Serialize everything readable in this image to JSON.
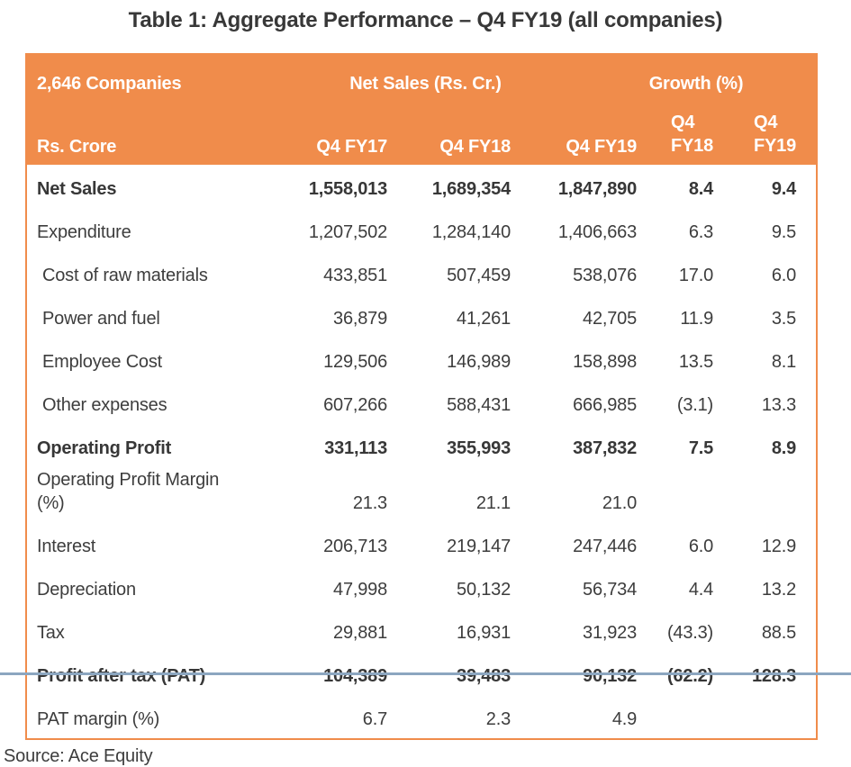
{
  "page": {
    "title": "Table 1: Aggregate Performance – Q4 FY19 (all companies)",
    "source": "Source: Ace Equity"
  },
  "colors": {
    "header_bg": "#F08C4B",
    "table_border": "#F08C4B",
    "header_text": "#FFFFFF",
    "body_text": "#3D3D3D",
    "bottom_rule": "#8CA6C0"
  },
  "chart_data": {
    "type": "table",
    "title": "Table 1: Aggregate Performance – Q4 FY19 (all companies)",
    "source": "Source: Ace Equity",
    "header": {
      "group_row": {
        "companies": "2,646 Companies",
        "net_sales": "Net Sales (Rs. Cr.)",
        "growth": "Growth (%)"
      },
      "columns_row": {
        "label": "Rs. Crore",
        "c1": "Q4 FY17",
        "c2": "Q4 FY18",
        "c3": "Q4 FY19",
        "g1_line1": "Q4",
        "g1_line2": "FY18",
        "g2_line1": "Q4",
        "g2_line2": "FY19"
      }
    },
    "rows": [
      {
        "label": "Net Sales",
        "bold": true,
        "indent": false,
        "q4fy17": "1,558,013",
        "q4fy18": "1,689,354",
        "q4fy19": "1,847,890",
        "growth_q4fy18": "8.4",
        "growth_q4fy19": "9.4"
      },
      {
        "label": "Expenditure",
        "bold": false,
        "indent": false,
        "q4fy17": "1,207,502",
        "q4fy18": "1,284,140",
        "q4fy19": "1,406,663",
        "growth_q4fy18": "6.3",
        "growth_q4fy19": "9.5"
      },
      {
        "label": "Cost of raw materials",
        "bold": false,
        "indent": true,
        "q4fy17": "433,851",
        "q4fy18": "507,459",
        "q4fy19": "538,076",
        "growth_q4fy18": "17.0",
        "growth_q4fy19": "6.0"
      },
      {
        "label": "Power and fuel",
        "bold": false,
        "indent": true,
        "q4fy17": "36,879",
        "q4fy18": "41,261",
        "q4fy19": "42,705",
        "growth_q4fy18": "11.9",
        "growth_q4fy19": "3.5"
      },
      {
        "label": "Employee Cost",
        "bold": false,
        "indent": true,
        "q4fy17": "129,506",
        "q4fy18": "146,989",
        "q4fy19": "158,898",
        "growth_q4fy18": "13.5",
        "growth_q4fy19": "8.1"
      },
      {
        "label": "Other expenses",
        "bold": false,
        "indent": true,
        "q4fy17": "607,266",
        "q4fy18": "588,431",
        "q4fy19": "666,985",
        "growth_q4fy18": "(3.1)",
        "growth_q4fy19": "13.3"
      },
      {
        "label": "Operating Profit",
        "bold": true,
        "indent": false,
        "q4fy17": "331,113",
        "q4fy18": "355,993",
        "q4fy19": "387,832",
        "growth_q4fy18": "7.5",
        "growth_q4fy19": "8.9"
      },
      {
        "label": "Operating Profit Margin (%)",
        "bold": false,
        "indent": false,
        "q4fy17": "21.3",
        "q4fy18": "21.1",
        "q4fy19": "21.0",
        "growth_q4fy18": "",
        "growth_q4fy19": ""
      },
      {
        "label": "Interest",
        "bold": false,
        "indent": false,
        "q4fy17": "206,713",
        "q4fy18": "219,147",
        "q4fy19": "247,446",
        "growth_q4fy18": "6.0",
        "growth_q4fy19": "12.9"
      },
      {
        "label": "Depreciation",
        "bold": false,
        "indent": false,
        "q4fy17": "47,998",
        "q4fy18": "50,132",
        "q4fy19": "56,734",
        "growth_q4fy18": "4.4",
        "growth_q4fy19": "13.2"
      },
      {
        "label": "Tax",
        "bold": false,
        "indent": false,
        "q4fy17": "29,881",
        "q4fy18": "16,931",
        "q4fy19": "31,923",
        "growth_q4fy18": "(43.3)",
        "growth_q4fy19": "88.5"
      },
      {
        "label": "Profit after tax (PAT)",
        "bold": true,
        "indent": false,
        "q4fy17": "104,389",
        "q4fy18": "39,483",
        "q4fy19": "90,132",
        "growth_q4fy18": "(62.2)",
        "growth_q4fy19": "128.3"
      },
      {
        "label": "PAT margin (%)",
        "bold": false,
        "indent": false,
        "q4fy17": "6.7",
        "q4fy18": "2.3",
        "q4fy19": "4.9",
        "growth_q4fy18": "",
        "growth_q4fy19": ""
      }
    ]
  }
}
